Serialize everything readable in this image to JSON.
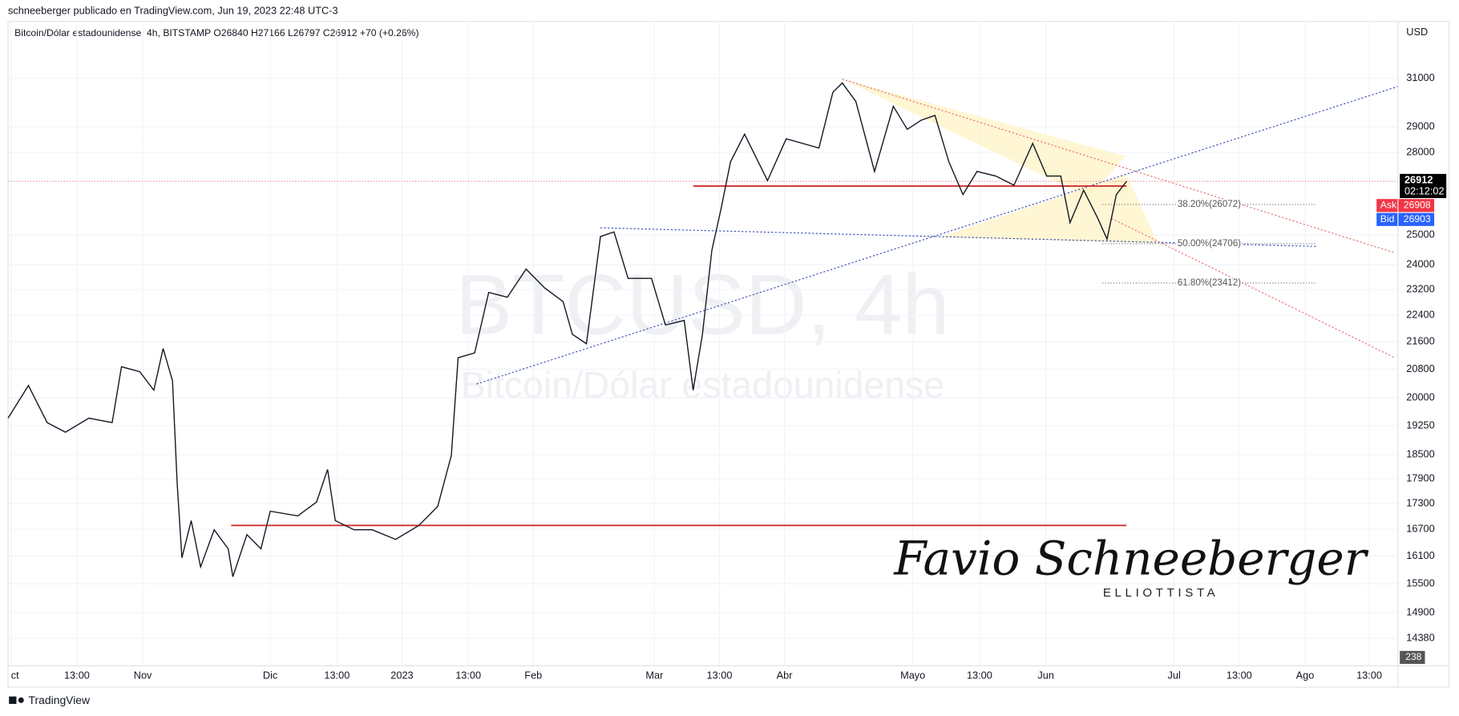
{
  "header": {
    "publisher": "schneeberger publicado en TradingView.com, Jun 19, 2023 22:48 UTC-3",
    "symbol_line": "Bitcoin/Dólar estadounidense, 4h, BITSTAMP  O26840  H27166  L26797  C26912  +70 (+0.26%)",
    "footer": "TradingView"
  },
  "chart_data": {
    "type": "line",
    "color": "#131722",
    "y_scale": "log",
    "grid": true,
    "currency": "USD",
    "watermark": "BTCUSD, 4h",
    "watermark_subtitle": "Bitcoin/Dólar estadounidense",
    "signature": "Favio Schneeberger",
    "signature_subtitle": "ELLIOTTISTA",
    "x": [
      -31.7,
      -26.9,
      -22.5,
      -18.2,
      -12.7,
      -7.2,
      -5.0,
      -0.7,
      2.6,
      4.8,
      7.0,
      8.1,
      9.2,
      11.4,
      13.6,
      16.8,
      20.1,
      21.2,
      24.5,
      27.8,
      30.0,
      36.5,
      40.9,
      43.5,
      45.3,
      49.7,
      54.0,
      59.5,
      65.0,
      69.4,
      72.6,
      74.2,
      78.1,
      81.4,
      85.8,
      90.2,
      94.5,
      98.9,
      101.1,
      104.4,
      107.7,
      110.9,
      114.2,
      119.7,
      123.0,
      127.4,
      129.5,
      131.7,
      133.9,
      136.1,
      138.3,
      141.6,
      147.0,
      151.4,
      159.1,
      162.4,
      164.6,
      167.8,
      172.2,
      176.6,
      179.9,
      183.2,
      186.4,
      189.7,
      193.0,
      196.3,
      200.7,
      205.0,
      209.4,
      212.7,
      216.0,
      218.2,
      221.4,
      224.7,
      226.9,
      229.1,
      231.5
    ],
    "values": [
      19450,
      20340,
      19330,
      19080,
      19450,
      19330,
      20870,
      20730,
      20210,
      21400,
      20470,
      17790,
      16060,
      16900,
      15860,
      16690,
      16260,
      15650,
      16580,
      16260,
      17120,
      17010,
      17340,
      18130,
      16900,
      16690,
      16690,
      16470,
      16790,
      17230,
      18480,
      21130,
      21270,
      23110,
      22960,
      23860,
      23260,
      22820,
      21820,
      21540,
      24950,
      25110,
      23560,
      23560,
      22100,
      22240,
      20210,
      21820,
      24480,
      25930,
      27640,
      28710,
      26940,
      28530,
      28170,
      30410,
      30800,
      30030,
      27280,
      29830,
      28900,
      29270,
      29460,
      27640,
      26430,
      27280,
      27110,
      26770,
      28350,
      27110,
      27110,
      25430,
      26590,
      25590,
      24860,
      26430,
      26912
    ],
    "xlim": [
      -31.7,
      294.7
    ],
    "ylim": [
      13850,
      33470
    ],
    "yticks": [
      31000,
      29000,
      28000,
      25000,
      24000,
      23200,
      22400,
      21600,
      20800,
      20000,
      19250,
      18500,
      17900,
      17300,
      16700,
      16100,
      15500,
      14900,
      14380
    ],
    "xticks": [
      {
        "value": -31,
        "label": "ct"
      },
      {
        "value": -15.5,
        "label": "13:00"
      },
      {
        "value": 0,
        "label": "Nov"
      },
      {
        "value": 30,
        "label": "Dic"
      },
      {
        "value": 45.7,
        "label": "13:00"
      },
      {
        "value": 61,
        "label": "2023"
      },
      {
        "value": 76.6,
        "label": "13:00"
      },
      {
        "value": 91.9,
        "label": "Feb"
      },
      {
        "value": 120.4,
        "label": "Mar"
      },
      {
        "value": 135.7,
        "label": "13:00"
      },
      {
        "value": 151,
        "label": "Abr"
      },
      {
        "value": 181.2,
        "label": "Mayo"
      },
      {
        "value": 196.9,
        "label": "13:00"
      },
      {
        "value": 212.5,
        "label": "Jun"
      },
      {
        "value": 242.7,
        "label": "Jul"
      },
      {
        "value": 258,
        "label": "13:00"
      },
      {
        "value": 273.5,
        "label": "Ago"
      },
      {
        "value": 288.6,
        "label": "13:00"
      }
    ],
    "last_price": 26912,
    "countdown": "02:12:02",
    "ask": {
      "label": "Ask",
      "value": 26908
    },
    "bid": {
      "label": "Bid",
      "value": 26903
    },
    "volume_last": 238,
    "hlines": [
      26740,
      16790
    ],
    "hline_color": "#d32f2f",
    "fib": [
      {
        "value": 26072,
        "label": "38.20%(26072)"
      },
      {
        "value": 24706,
        "label": "50.00%(24706)"
      },
      {
        "value": 23412,
        "label": "61.80%(23412)"
      }
    ]
  }
}
